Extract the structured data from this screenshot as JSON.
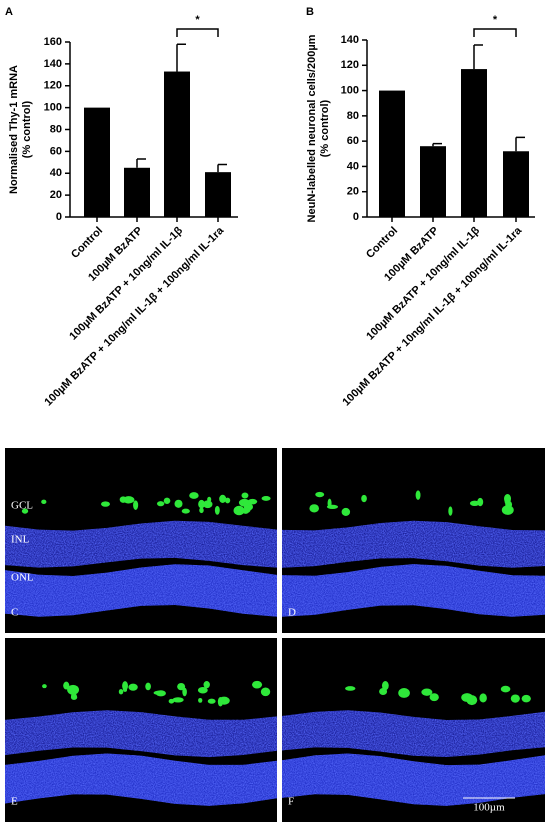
{
  "chart_data": [
    {
      "type": "bar",
      "panel": "A",
      "ylabel": [
        "Normalised Thy-1 mRNA",
        "(% control)"
      ],
      "categories": [
        "Control",
        "100µM BzATP",
        "100µM BzATP + 10ng/ml IL-1β",
        "100µM BzATP + 10ng/ml IL-1β + 100ng/ml IL-1ra"
      ],
      "values": [
        100,
        45,
        133,
        41
      ],
      "errors": [
        null,
        8,
        25,
        7
      ],
      "color": "#000000",
      "ylim": [
        0,
        160
      ],
      "yticks": [
        0,
        20,
        40,
        60,
        80,
        100,
        120,
        140,
        160
      ],
      "significance": "*"
    },
    {
      "type": "bar",
      "panel": "B",
      "ylabel": [
        "NeuN-labelled neuronal cells/200µm",
        "(% control)"
      ],
      "categories": [
        "Control",
        "100µM BzATP",
        "100µM BzATP + 10ng/ml IL-1β",
        "100µM BzATP + 10ng/ml IL-1β + 100ng/ml IL-1ra"
      ],
      "values": [
        100,
        56,
        117,
        52
      ],
      "errors": [
        null,
        2,
        19,
        11
      ],
      "color": "#000000",
      "ylim": [
        0,
        140
      ],
      "yticks": [
        0,
        20,
        40,
        60,
        80,
        100,
        120,
        140
      ],
      "significance": "*"
    }
  ],
  "micrographs": {
    "panels": [
      {
        "label": "C",
        "layers": [
          "GCL",
          "INL",
          "ONL"
        ]
      },
      {
        "label": "D"
      },
      {
        "label": "E"
      },
      {
        "label": "F",
        "scale_bar": "100µm"
      }
    ]
  }
}
